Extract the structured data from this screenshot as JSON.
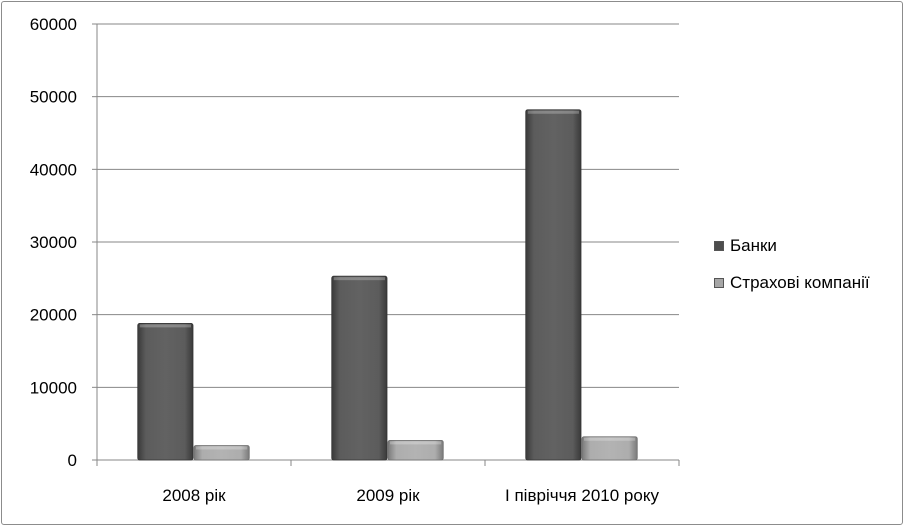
{
  "chart_data": {
    "type": "bar",
    "categories": [
      "2008 рік",
      "2009 рік",
      "І півріччя 2010 року"
    ],
    "series": [
      {
        "name": "Банки",
        "values": [
          18800,
          25300,
          48200
        ],
        "color": "#5a5a5a"
      },
      {
        "name": "Страхові компанії",
        "values": [
          2000,
          2700,
          3200
        ],
        "color": "#a6a6a6"
      }
    ],
    "ylim": [
      0,
      60000
    ],
    "yticks": [
      0,
      10000,
      20000,
      30000,
      40000,
      50000,
      60000
    ],
    "grid": true,
    "legend_position": "right",
    "title": "",
    "xlabel": "",
    "ylabel": ""
  }
}
